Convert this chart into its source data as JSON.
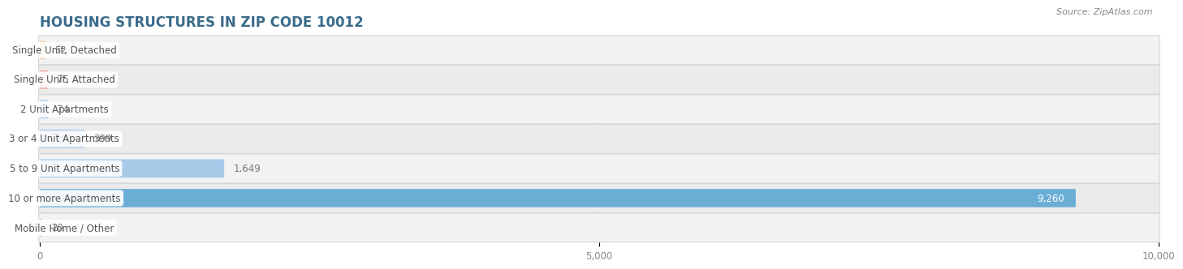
{
  "title": "HOUSING STRUCTURES IN ZIP CODE 10012",
  "source": "Source: ZipAtlas.com",
  "categories": [
    "Single Unit, Detached",
    "Single Unit, Attached",
    "2 Unit Apartments",
    "3 or 4 Unit Apartments",
    "5 to 9 Unit Apartments",
    "10 or more Apartments",
    "Mobile Home / Other"
  ],
  "values": [
    52,
    75,
    74,
    399,
    1649,
    9260,
    20
  ],
  "bar_colors": [
    "#f5c99a",
    "#f0a0a0",
    "#a8c8e8",
    "#a8c8e8",
    "#a8c8e8",
    "#6aaed6",
    "#d4b8d8"
  ],
  "value_label_color": [
    "#777777",
    "#777777",
    "#777777",
    "#777777",
    "#777777",
    "#ffffff",
    "#777777"
  ],
  "xlim": [
    0,
    10000
  ],
  "xticks": [
    0,
    5000,
    10000
  ],
  "xtick_labels": [
    "0",
    "5,000",
    "10,000"
  ],
  "title_fontsize": 12,
  "label_fontsize": 8.5,
  "value_fontsize": 8.5,
  "bar_height": 0.62,
  "row_colors": [
    "#f2f2f2",
    "#ebebeb"
  ],
  "background_color": "#ffffff",
  "title_color": "#3a6b8a"
}
